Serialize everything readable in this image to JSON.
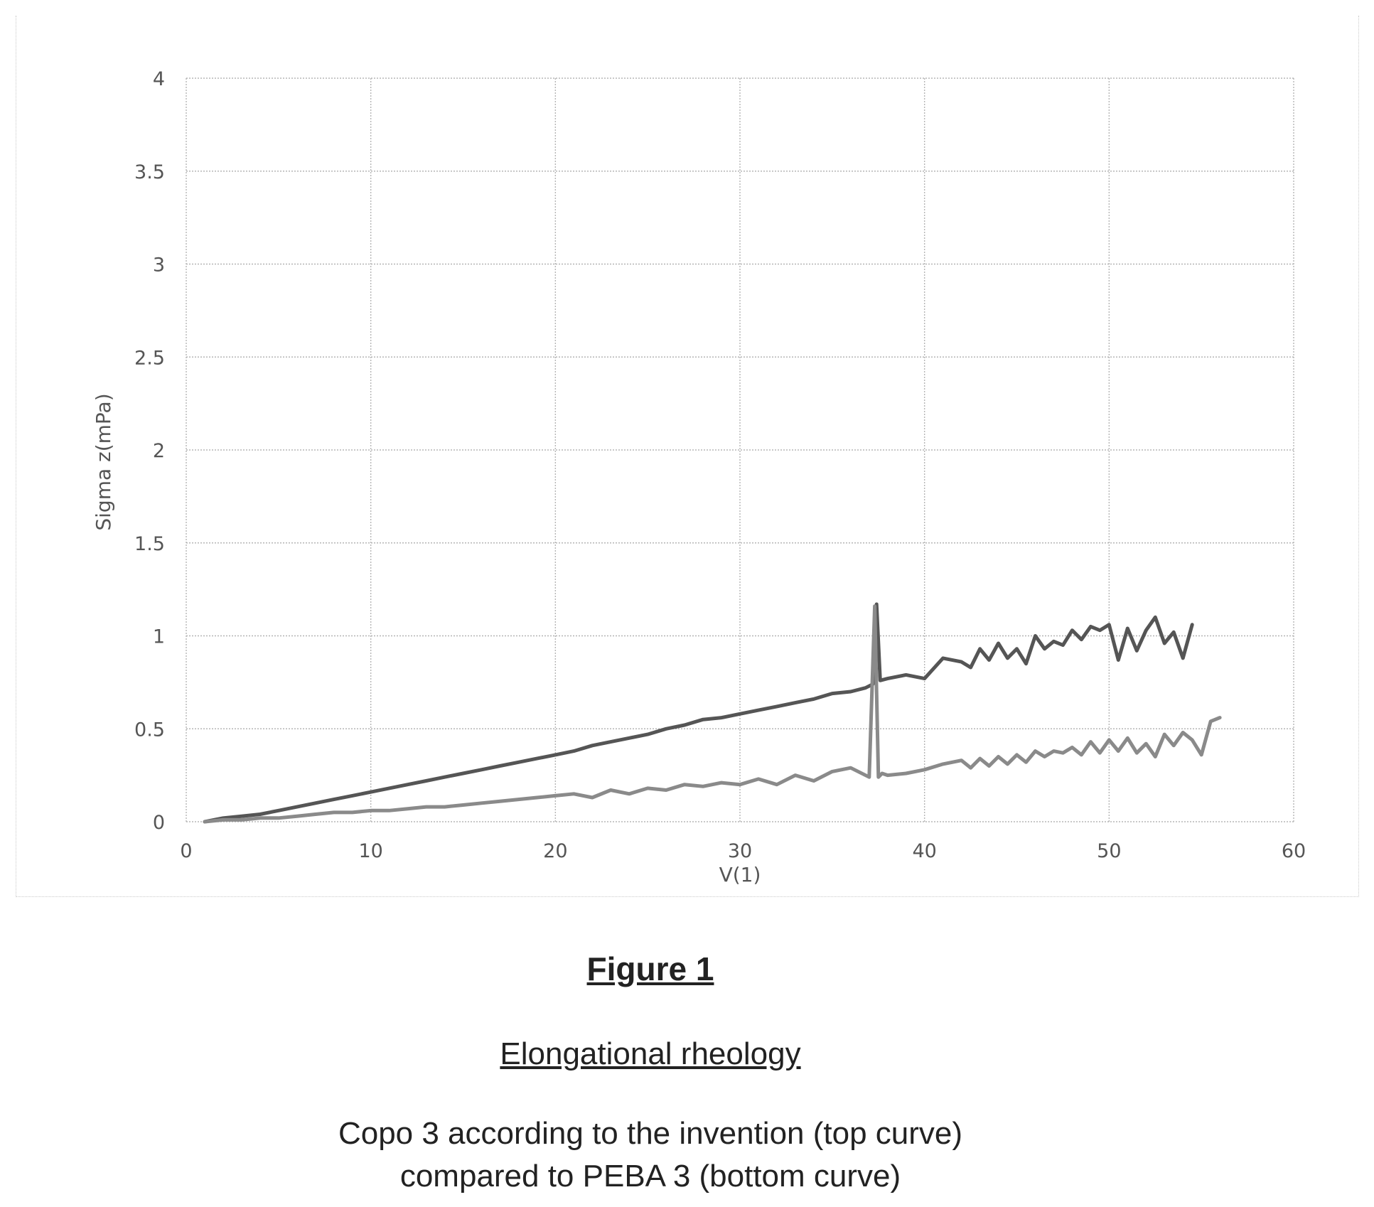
{
  "figure": {
    "label": "Figure 1",
    "title": "Elongational rheology",
    "description_line1": "Copo 3 according to the invention (top curve)",
    "description_line2": "compared to PEBA 3 (bottom curve)"
  },
  "chart_data": {
    "type": "line",
    "title": "",
    "xlabel": "V(1)",
    "ylabel": "Sigma z(mPa)",
    "xlim": [
      0,
      60
    ],
    "ylim": [
      0,
      4
    ],
    "x_ticks": [
      0,
      10,
      20,
      30,
      40,
      50,
      60
    ],
    "y_ticks": [
      0,
      0.5,
      1,
      1.5,
      2,
      2.5,
      3,
      3.5,
      4
    ],
    "grid": true,
    "legend": "none",
    "series": [
      {
        "color": "#555555",
        "x": [
          1,
          2,
          3,
          4,
          5,
          6,
          7,
          8,
          9,
          10,
          11,
          12,
          13,
          14,
          15,
          16,
          17,
          18,
          19,
          20,
          21,
          22,
          23,
          24,
          25,
          26,
          27,
          28,
          29,
          30,
          31,
          32,
          33,
          34,
          35,
          36,
          36.8,
          37.2,
          37.4,
          37.6,
          38,
          39,
          40,
          41,
          42,
          42.5,
          43,
          43.5,
          44,
          44.5,
          45,
          45.5,
          46,
          46.5,
          47,
          47.5,
          48,
          48.5,
          49,
          49.5,
          50,
          50.5,
          51,
          51.5,
          52,
          52.5,
          53,
          53.5,
          54,
          54.5
        ],
        "y": [
          0.0,
          0.02,
          0.03,
          0.04,
          0.06,
          0.08,
          0.1,
          0.12,
          0.14,
          0.16,
          0.18,
          0.2,
          0.22,
          0.24,
          0.26,
          0.28,
          0.3,
          0.32,
          0.34,
          0.36,
          0.38,
          0.41,
          0.43,
          0.45,
          0.47,
          0.5,
          0.52,
          0.55,
          0.56,
          0.58,
          0.6,
          0.62,
          0.64,
          0.66,
          0.69,
          0.7,
          0.72,
          0.74,
          1.17,
          0.76,
          0.77,
          0.79,
          0.77,
          0.88,
          0.86,
          0.83,
          0.93,
          0.87,
          0.96,
          0.88,
          0.93,
          0.85,
          1.0,
          0.93,
          0.97,
          0.95,
          1.03,
          0.98,
          1.05,
          1.03,
          1.06,
          0.87,
          1.04,
          0.92,
          1.03,
          1.1,
          0.96,
          1.02,
          0.88,
          1.06
        ]
      },
      {
        "color": "#8a8a8a",
        "x": [
          1,
          2,
          3,
          4,
          5,
          6,
          7,
          8,
          9,
          10,
          11,
          12,
          13,
          14,
          15,
          16,
          17,
          18,
          19,
          20,
          21,
          22,
          23,
          24,
          25,
          26,
          27,
          28,
          29,
          30,
          31,
          32,
          33,
          34,
          35,
          36,
          37,
          37.3,
          37.5,
          37.7,
          38,
          39,
          40,
          41,
          42,
          42.5,
          43,
          43.5,
          44,
          44.5,
          45,
          45.5,
          46,
          46.5,
          47,
          47.5,
          48,
          48.5,
          49,
          49.5,
          50,
          50.5,
          51,
          51.5,
          52,
          52.5,
          53,
          53.5,
          54,
          54.5,
          55,
          55.5,
          56
        ],
        "y": [
          0.0,
          0.01,
          0.01,
          0.02,
          0.02,
          0.03,
          0.04,
          0.05,
          0.05,
          0.06,
          0.06,
          0.07,
          0.08,
          0.08,
          0.09,
          0.1,
          0.11,
          0.12,
          0.13,
          0.14,
          0.15,
          0.13,
          0.17,
          0.15,
          0.18,
          0.17,
          0.2,
          0.19,
          0.21,
          0.2,
          0.23,
          0.2,
          0.25,
          0.22,
          0.27,
          0.29,
          0.24,
          1.16,
          0.24,
          0.26,
          0.25,
          0.26,
          0.28,
          0.31,
          0.33,
          0.29,
          0.34,
          0.3,
          0.35,
          0.31,
          0.36,
          0.32,
          0.38,
          0.35,
          0.38,
          0.37,
          0.4,
          0.36,
          0.43,
          0.37,
          0.44,
          0.38,
          0.45,
          0.37,
          0.42,
          0.35,
          0.47,
          0.41,
          0.48,
          0.44,
          0.36,
          0.54,
          0.56
        ]
      }
    ]
  }
}
